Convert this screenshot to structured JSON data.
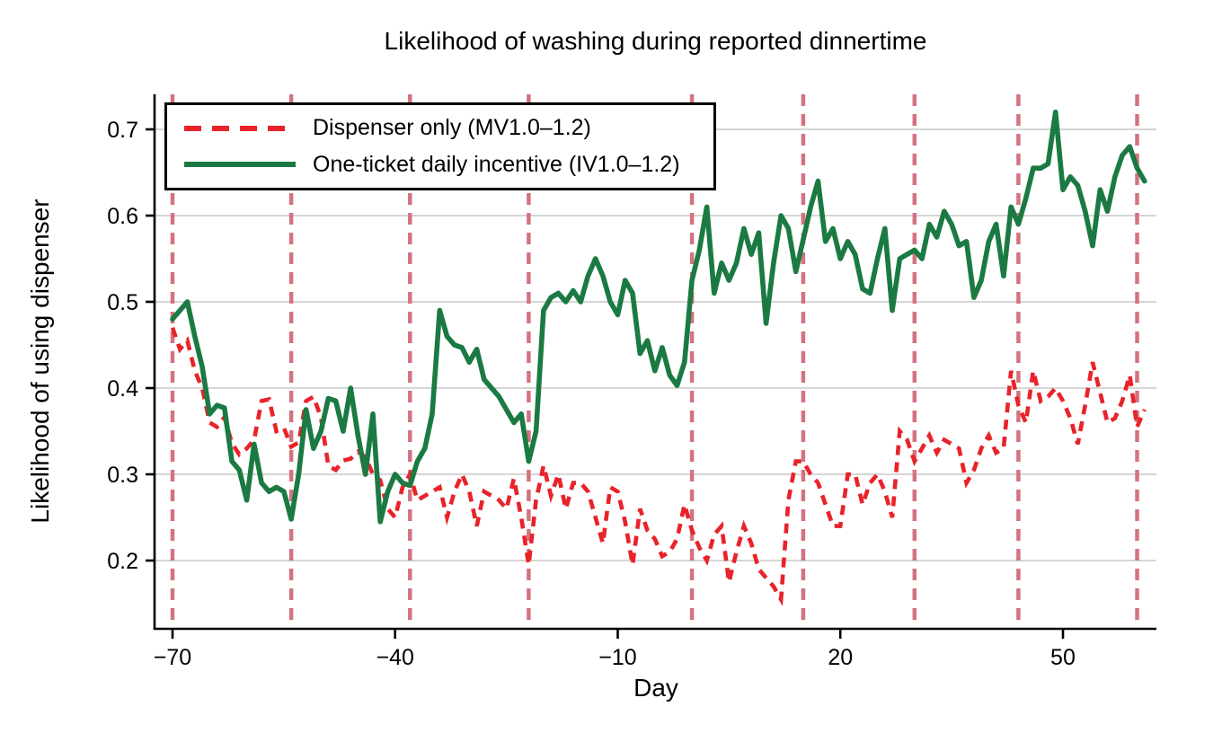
{
  "title": "Likelihood of washing during reported dinnertime",
  "legend": {
    "entries": [
      {
        "label": "Dispenser only (MV1.0–1.2)",
        "style": "dashed",
        "color": "#e8232a"
      },
      {
        "label": "One-ticket daily incentive (IV1.0–1.2)",
        "style": "solid",
        "color": "#1b7a43"
      }
    ]
  },
  "colors": {
    "dispenser_series": "#e8232a",
    "incentive_series": "#1b7a43",
    "event_vlines": "#d4737f",
    "gridlines": "#c9c9c9",
    "axis": "#000000",
    "background": "#ffffff"
  },
  "chart_data": {
    "type": "line",
    "title": "Likelihood of washing during reported dinnertime",
    "xlabel": "Day",
    "ylabel": "Likelihood of using dispenser",
    "xlim": [
      -72.4,
      62.6
    ],
    "ylim": [
      0.14,
      0.74
    ],
    "xticks": [
      -70,
      -40,
      -10,
      20,
      50
    ],
    "xtick_labels": [
      "−70",
      "−40",
      "−10",
      "20",
      "50"
    ],
    "yticks": [
      0.2,
      0.3,
      0.4,
      0.5,
      0.6,
      0.7
    ],
    "ytick_labels": [
      "0.2",
      "0.3",
      "0.4",
      "0.5",
      "0.6",
      "0.7"
    ],
    "grid": "horizontal",
    "legend_position": "inside-top-left",
    "vline_days": [
      -70,
      -54,
      -38,
      -22,
      0,
      15,
      30,
      44,
      60
    ],
    "x": [
      -70,
      -69,
      -68,
      -67,
      -66,
      -65,
      -64,
      -63,
      -62,
      -61,
      -60,
      -59,
      -58,
      -57,
      -56,
      -55,
      -54,
      -53,
      -52,
      -51,
      -50,
      -49,
      -48,
      -47,
      -46,
      -45,
      -44,
      -43,
      -42,
      -41,
      -40,
      -39,
      -38,
      -37,
      -36,
      -35,
      -34,
      -33,
      -32,
      -31,
      -30,
      -29,
      -28,
      -27,
      -26,
      -25,
      -24,
      -23,
      -22,
      -21,
      -20,
      -19,
      -18,
      -17,
      -16,
      -15,
      -14,
      -13,
      -12,
      -11,
      -10,
      -9,
      -8,
      -7,
      -6,
      -5,
      -4,
      -3,
      -2,
      -1,
      0,
      1,
      2,
      3,
      4,
      5,
      6,
      7,
      8,
      9,
      10,
      11,
      12,
      13,
      14,
      15,
      16,
      17,
      18,
      19,
      20,
      21,
      22,
      23,
      24,
      25,
      26,
      27,
      28,
      29,
      30,
      31,
      32,
      33,
      34,
      35,
      36,
      37,
      38,
      39,
      40,
      41,
      42,
      43,
      44,
      45,
      46,
      47,
      48,
      49,
      50,
      51,
      52,
      53,
      54,
      55,
      56,
      57,
      58,
      59,
      60,
      61
    ],
    "series": [
      {
        "name": "Dispenser only (MV1.0–1.2)",
        "color": "#e8232a",
        "line_style": "dashed",
        "values": [
          0.47,
          0.445,
          0.455,
          0.42,
          0.4,
          0.36,
          0.355,
          0.366,
          0.336,
          0.323,
          0.33,
          0.34,
          0.385,
          0.387,
          0.35,
          0.354,
          0.332,
          0.337,
          0.385,
          0.39,
          0.366,
          0.31,
          0.305,
          0.316,
          0.318,
          0.326,
          0.32,
          0.3,
          0.293,
          0.26,
          0.25,
          0.285,
          0.3,
          0.27,
          0.275,
          0.28,
          0.285,
          0.25,
          0.28,
          0.3,
          0.28,
          0.24,
          0.28,
          0.275,
          0.27,
          0.26,
          0.295,
          0.25,
          0.195,
          0.27,
          0.31,
          0.275,
          0.3,
          0.26,
          0.29,
          0.29,
          0.28,
          0.25,
          0.22,
          0.285,
          0.28,
          0.245,
          0.195,
          0.26,
          0.235,
          0.225,
          0.205,
          0.21,
          0.225,
          0.265,
          0.235,
          0.215,
          0.2,
          0.23,
          0.24,
          0.175,
          0.21,
          0.24,
          0.22,
          0.19,
          0.18,
          0.17,
          0.155,
          0.27,
          0.315,
          0.315,
          0.3,
          0.29,
          0.265,
          0.24,
          0.24,
          0.3,
          0.3,
          0.265,
          0.29,
          0.3,
          0.28,
          0.25,
          0.35,
          0.34,
          0.315,
          0.33,
          0.345,
          0.325,
          0.34,
          0.335,
          0.33,
          0.29,
          0.305,
          0.33,
          0.345,
          0.325,
          0.33,
          0.42,
          0.38,
          0.36,
          0.42,
          0.385,
          0.39,
          0.4,
          0.385,
          0.365,
          0.335,
          0.38,
          0.43,
          0.395,
          0.36,
          0.365,
          0.385,
          0.415,
          0.355,
          0.375
        ]
      },
      {
        "name": "One-ticket daily incentive (IV1.0–1.2)",
        "color": "#1b7a43",
        "line_style": "solid",
        "values": [
          0.48,
          0.49,
          0.5,
          0.46,
          0.425,
          0.37,
          0.38,
          0.377,
          0.315,
          0.305,
          0.27,
          0.335,
          0.29,
          0.28,
          0.285,
          0.28,
          0.248,
          0.3,
          0.375,
          0.33,
          0.35,
          0.388,
          0.385,
          0.35,
          0.4,
          0.345,
          0.3,
          0.37,
          0.245,
          0.28,
          0.3,
          0.29,
          0.287,
          0.315,
          0.33,
          0.37,
          0.49,
          0.46,
          0.45,
          0.447,
          0.43,
          0.445,
          0.41,
          0.4,
          0.39,
          0.375,
          0.36,
          0.37,
          0.315,
          0.35,
          0.49,
          0.505,
          0.51,
          0.5,
          0.513,
          0.5,
          0.53,
          0.55,
          0.53,
          0.5,
          0.485,
          0.525,
          0.51,
          0.44,
          0.455,
          0.42,
          0.447,
          0.415,
          0.403,
          0.43,
          0.525,
          0.56,
          0.61,
          0.51,
          0.545,
          0.525,
          0.545,
          0.585,
          0.555,
          0.58,
          0.475,
          0.545,
          0.6,
          0.585,
          0.535,
          0.572,
          0.61,
          0.64,
          0.57,
          0.585,
          0.55,
          0.57,
          0.555,
          0.515,
          0.51,
          0.55,
          0.585,
          0.49,
          0.55,
          0.555,
          0.56,
          0.55,
          0.59,
          0.575,
          0.605,
          0.59,
          0.565,
          0.57,
          0.505,
          0.525,
          0.57,
          0.59,
          0.53,
          0.61,
          0.59,
          0.62,
          0.655,
          0.655,
          0.66,
          0.72,
          0.63,
          0.645,
          0.635,
          0.605,
          0.565,
          0.63,
          0.605,
          0.645,
          0.67,
          0.68,
          0.655,
          0.64
        ]
      }
    ]
  }
}
